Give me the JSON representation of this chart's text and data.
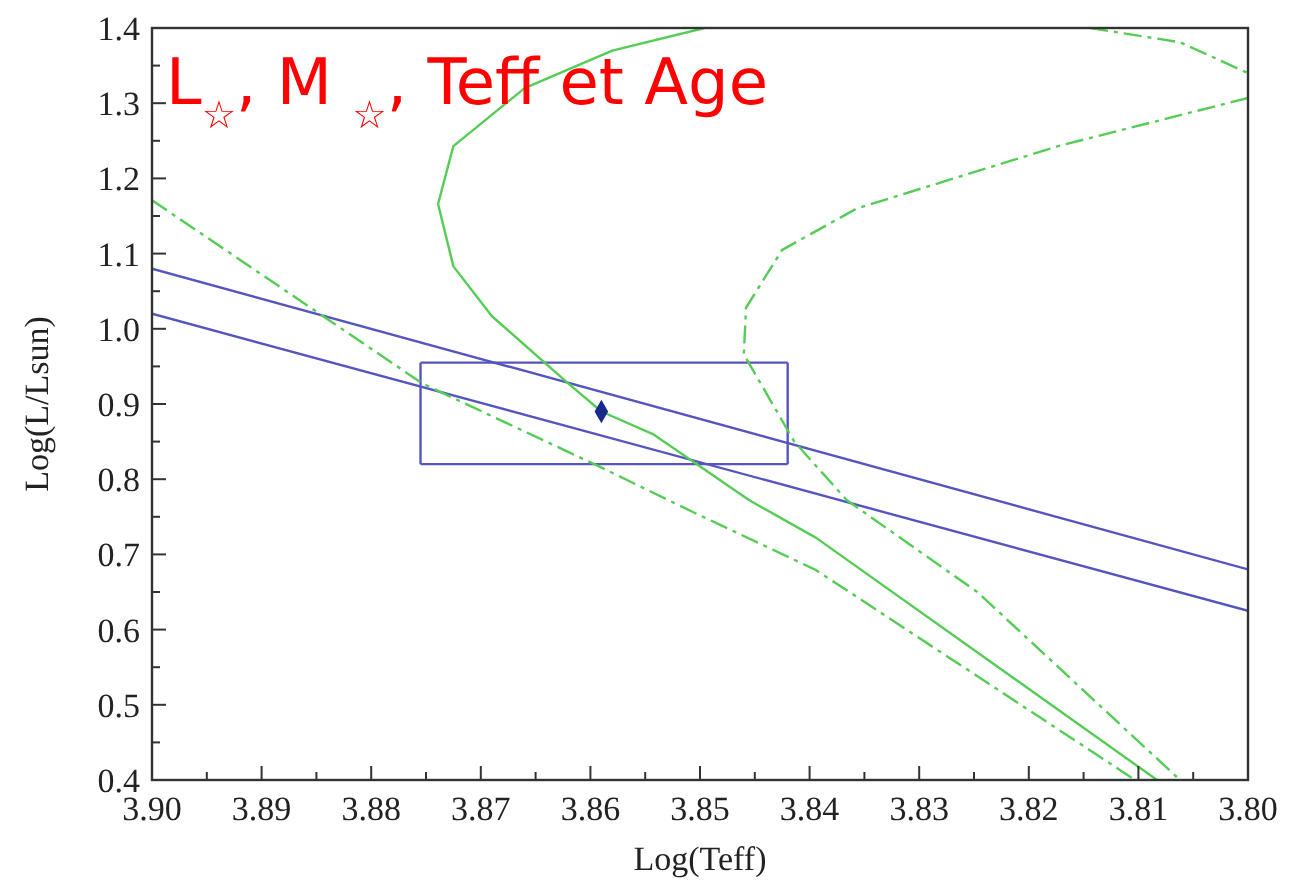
{
  "chart_data": {
    "type": "line",
    "title": "L$_{☆}$, M $_{☆}$, Teff et Age",
    "xlabel": "Log(Teff)",
    "ylabel": "Log(L/Lsun)",
    "xlim": [
      3.9,
      3.8
    ],
    "ylim": [
      0.4,
      1.4
    ],
    "xticks": [
      {
        "value": 3.9,
        "label": "3.90"
      },
      {
        "value": 3.895,
        "label": null
      },
      3.89,
      {
        "value": 3.885,
        "label": null
      },
      3.88,
      {
        "value": 3.875,
        "label": null
      },
      3.87,
      {
        "value": 3.865,
        "label": null
      },
      3.86,
      {
        "value": 3.855,
        "label": null
      },
      3.85,
      {
        "value": 3.845,
        "label": null
      },
      3.84,
      {
        "value": 3.835,
        "label": null
      },
      3.83,
      {
        "value": 3.825,
        "label": null
      },
      3.82,
      {
        "value": 3.815,
        "label": null
      },
      3.81,
      {
        "value": 3.805,
        "label": null
      },
      {
        "value": 3.8,
        "label": "3.80"
      }
    ],
    "yticks": [
      0.4,
      {
        "value": 0.45,
        "label": null
      },
      0.5,
      {
        "value": 0.55,
        "label": null
      },
      0.6,
      {
        "value": 0.65,
        "label": null
      },
      0.7,
      {
        "value": 0.75,
        "label": null
      },
      0.8,
      {
        "value": 0.85,
        "label": null
      },
      0.9,
      {
        "value": 0.95,
        "label": null
      },
      {
        "value": 1.0,
        "label": "1.0"
      },
      {
        "value": 1.05,
        "label": null
      },
      1.1,
      {
        "value": 1.15,
        "label": null
      },
      1.2,
      {
        "value": 1.25,
        "label": null
      },
      1.3,
      {
        "value": 1.35,
        "label": null
      },
      1.4
    ],
    "grid": false,
    "series": [
      {
        "color": "#5555c0",
        "line_style": "solid",
        "x": [
          3.9,
          3.8
        ],
        "values": [
          1.08,
          0.68
        ]
      },
      {
        "color": "#5555c0",
        "line_style": "solid",
        "x": [
          3.9,
          3.8
        ],
        "values": [
          1.02,
          0.625
        ]
      },
      {
        "color": "#5555c0",
        "line_style": "solid",
        "x": [
          3.8755,
          3.842
        ],
        "values": [
          0.82,
          0.82
        ]
      },
      {
        "color": "#5555c0",
        "line_style": "solid",
        "x": [
          3.8755,
          3.842
        ],
        "values": [
          0.955,
          0.955
        ]
      },
      {
        "color": "#5555c0",
        "line_style": "solid",
        "x": [
          3.8755,
          3.8755
        ],
        "values": [
          0.82,
          0.955
        ]
      },
      {
        "color": "#5555c0",
        "line_style": "solid",
        "x": [
          3.842,
          3.842
        ],
        "values": [
          0.82,
          0.955
        ]
      },
      {
        "color": "#55cc55",
        "line_style": "solid",
        "x": [
          3.8496,
          3.858,
          3.866,
          3.8725,
          3.8739,
          3.8725,
          3.869,
          3.862,
          3.859,
          3.8543,
          3.8455,
          3.8394,
          3.8083
        ],
        "values": [
          1.4,
          1.37,
          1.32,
          1.243,
          1.166,
          1.083,
          1.017,
          0.927,
          0.89,
          0.86,
          0.772,
          0.722,
          0.4
        ]
      },
      {
        "color": "#55cc55",
        "line_style": "dashed",
        "x": [
          3.9,
          3.8753,
          3.8595,
          3.8506,
          3.8394,
          3.8103
        ],
        "values": [
          1.171,
          0.927,
          0.819,
          0.756,
          0.679,
          0.4
        ]
      },
      {
        "color": "#55cc55",
        "line_style": "dashed",
        "x": [
          3.8144,
          3.8062,
          3.8,
          null,
          3.8,
          3.8173,
          3.8357,
          3.8425,
          3.8458,
          3.846,
          3.8414,
          3.8366,
          3.8247,
          3.8062
        ],
        "values": [
          1.4,
          1.381,
          1.34,
          null,
          1.307,
          1.243,
          1.16,
          1.105,
          1.028,
          0.966,
          0.85,
          0.772,
          0.65,
          0.4
        ]
      },
      {
        "type": "scatter",
        "color": "#1a2a8a",
        "marker": "diamond",
        "x": [
          3.859
        ],
        "values": [
          0.89
        ]
      }
    ]
  }
}
